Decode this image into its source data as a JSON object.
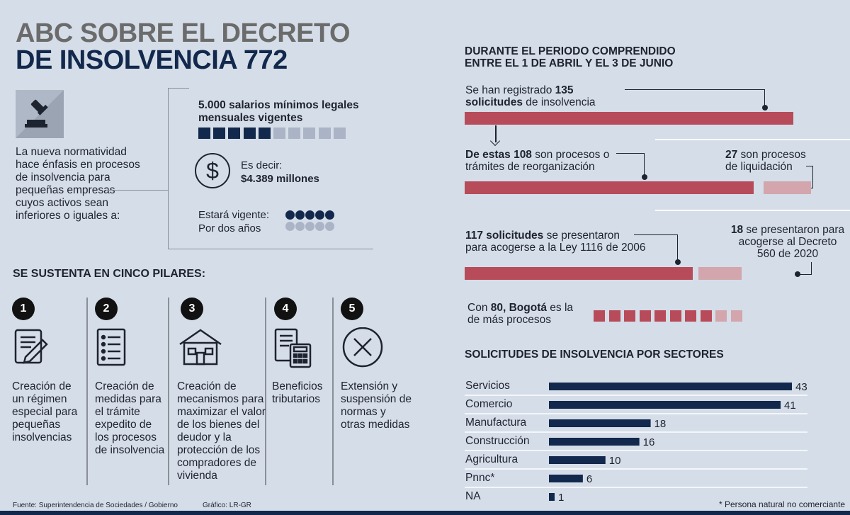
{
  "header": {
    "title_line1": "ABC SOBRE EL DECRETO",
    "title_line2": "DE INSOLVENCIA 772"
  },
  "intro": {
    "text": "La nueva normatividad hace énfasis en procesos de insolvencia para pequeñas empresas cuyos activos sean inferiores o iguales a:",
    "icon": "gavel-icon"
  },
  "salarios": {
    "label": "5.000 salarios mínimos legales mensuales vigentes",
    "filled": 5,
    "total": 10,
    "es_decir_label": "Es decir:",
    "es_decir_value": "$4.389 millones",
    "vigente_label": "Estará vigente:",
    "vigente_value": "Por dos años",
    "dots_filled": 5,
    "dots_total": 10
  },
  "pilares": {
    "heading": "SE SUSTENTA EN CINCO PILARES:",
    "items": [
      {
        "num": "1",
        "icon": "contract-icon",
        "text": "Creación de un régimen especial para pequeñas insolvencias"
      },
      {
        "num": "2",
        "icon": "checklist-icon",
        "text": "Creación de medidas para el trámite expedito de los procesos de insolvencia"
      },
      {
        "num": "3",
        "icon": "house-icon",
        "text": "Creación de mecanismos para maximizar el valor de los bienes del deudor y la protección de los compradores de vivienda"
      },
      {
        "num": "4",
        "icon": "calculator-icon",
        "text": "Beneficios tributarios"
      },
      {
        "num": "5",
        "icon": "cross-circle-icon",
        "text": "Extensión y suspensión de normas y otras medidas"
      }
    ]
  },
  "periodo": {
    "heading_line1": "DURANTE EL PERIODO COMPRENDIDO",
    "heading_line2": "ENTRE EL 1 DE ABRIL Y EL 3 DE JUNIO",
    "total": {
      "pre": "Se han registrado ",
      "num": "135",
      "bold2": "solicitudes",
      "post": " de insolvencia",
      "value": 135
    },
    "reorg": {
      "bold": "De estas 108",
      "post": " son procesos o",
      "line2": "trámites de reorganización",
      "value": 108
    },
    "liq": {
      "bold": "27",
      "post": " son procesos",
      "line2": "de liquidación",
      "value": 27
    },
    "ley1116": {
      "bold": "117 solicitudes",
      "post": " se presentaron",
      "line2": "para acogerse  a la Ley 1116 de 2006",
      "value": 117
    },
    "dec560": {
      "bold": "18",
      "post": " se presentaron para",
      "line2": "acogerse al Decreto",
      "line3": "560 de 2020",
      "value": 18
    },
    "bogota": {
      "pre": "Con ",
      "bold": "80, Bogotá",
      "post": " es la",
      "line2": "de más procesos",
      "filled": 8,
      "total": 10
    }
  },
  "sectores_heading": "SOLICITUDES DE INSOLVENCIA POR SECTORES",
  "chart_data": {
    "type": "bar",
    "title": "SOLICITUDES DE INSOLVENCIA POR SECTORES",
    "categories": [
      "Servicios",
      "Comercio",
      "Manufactura",
      "Construcción",
      "Agricultura",
      "Pnnc*",
      "NA"
    ],
    "values": [
      43,
      41,
      18,
      16,
      10,
      6,
      1
    ],
    "xlim": [
      0,
      43
    ],
    "color": "#12284c"
  },
  "footnote": "* Persona natural no comerciante",
  "source": "Fuente: Superintendencia de Sociedades / Gobierno",
  "credit": "Gráfico: LR-GR",
  "colors": {
    "navy": "#12284c",
    "red": "#b74b5a",
    "pink": "#d3a5ac",
    "grey": "#aab4c6"
  }
}
